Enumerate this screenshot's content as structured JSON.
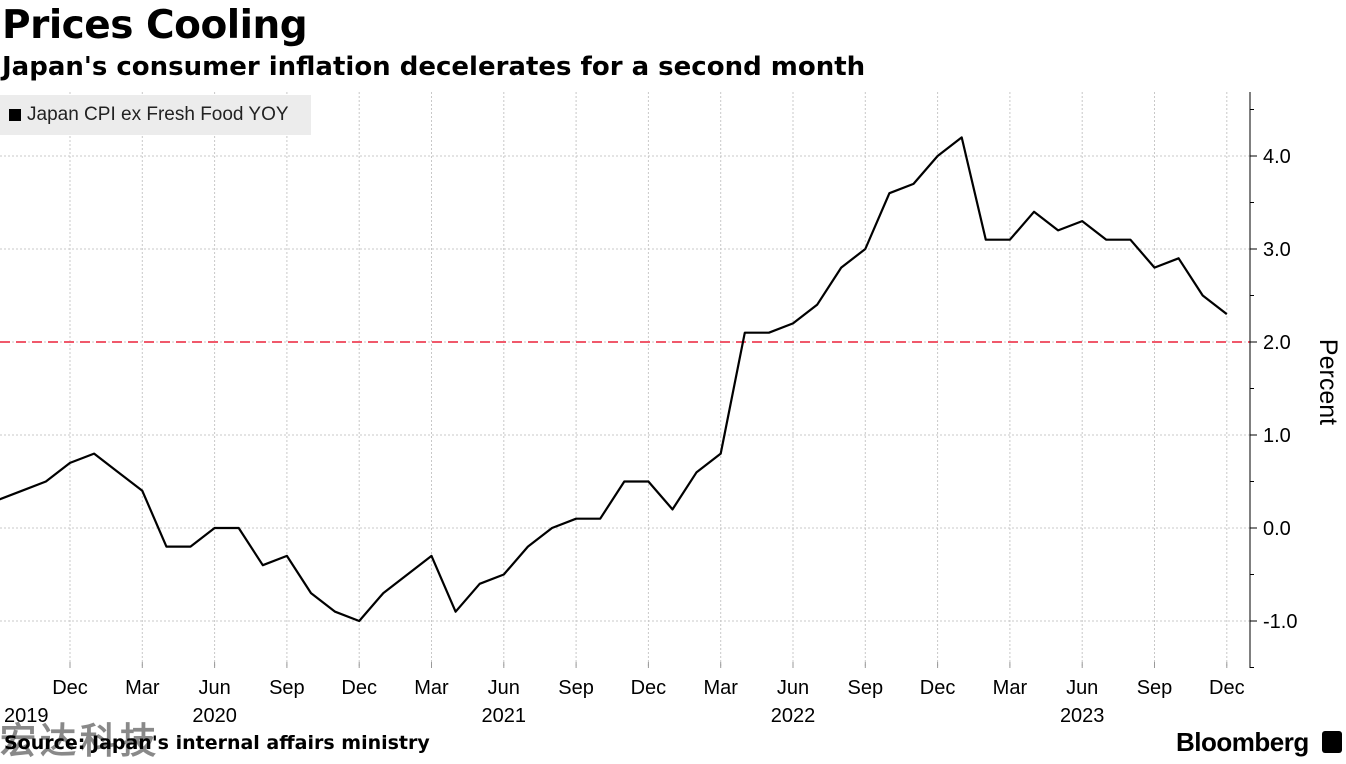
{
  "header": {
    "title": "Prices Cooling",
    "subtitle": "Japan's consumer inflation decelerates for a second month"
  },
  "footer": {
    "source": "Source: Japan's internal affairs ministry",
    "logo": "Bloomberg",
    "watermark": "宏达科技"
  },
  "colors": {
    "line": "#000000",
    "reference": "#f0596b",
    "grid": "#c8c8c8",
    "legend_bg": "#ececec"
  },
  "chart_data": {
    "type": "line",
    "title": "Prices Cooling",
    "subtitle": "Japan's consumer inflation decelerates for a second month",
    "ylabel": "Percent",
    "xlabel": "",
    "ylim": [
      -1.5,
      4.7
    ],
    "yticks": [
      -1.0,
      0.0,
      1.0,
      2.0,
      3.0,
      4.0
    ],
    "ytick_labels": [
      "-1.0",
      "0.0",
      "1.0",
      "2.0",
      "3.0",
      "4.0"
    ],
    "y_axis_position": "right",
    "grid": true,
    "legend": "top-left",
    "reference_line": {
      "y": 2.0,
      "style": "dashed"
    },
    "x_ticks": [
      {
        "date": "2019-12",
        "month": "Dec",
        "year": "2019"
      },
      {
        "date": "2020-03",
        "month": "Mar",
        "year": ""
      },
      {
        "date": "2020-06",
        "month": "Jun",
        "year": "2020"
      },
      {
        "date": "2020-09",
        "month": "Sep",
        "year": ""
      },
      {
        "date": "2020-12",
        "month": "Dec",
        "year": ""
      },
      {
        "date": "2021-03",
        "month": "Mar",
        "year": ""
      },
      {
        "date": "2021-06",
        "month": "Jun",
        "year": "2021"
      },
      {
        "date": "2021-09",
        "month": "Sep",
        "year": ""
      },
      {
        "date": "2021-12",
        "month": "Dec",
        "year": ""
      },
      {
        "date": "2022-03",
        "month": "Mar",
        "year": ""
      },
      {
        "date": "2022-06",
        "month": "Jun",
        "year": "2022"
      },
      {
        "date": "2022-09",
        "month": "Sep",
        "year": ""
      },
      {
        "date": "2022-12",
        "month": "Dec",
        "year": ""
      },
      {
        "date": "2023-03",
        "month": "Mar",
        "year": ""
      },
      {
        "date": "2023-06",
        "month": "Jun",
        "year": "2023"
      },
      {
        "date": "2023-09",
        "month": "Sep",
        "year": ""
      },
      {
        "date": "2023-12",
        "month": "Dec",
        "year": ""
      }
    ],
    "series": [
      {
        "name": "Japan CPI ex Fresh Food YOY",
        "x": [
          "2019-09",
          "2019-10",
          "2019-11",
          "2019-12",
          "2020-01",
          "2020-02",
          "2020-03",
          "2020-04",
          "2020-05",
          "2020-06",
          "2020-07",
          "2020-08",
          "2020-09",
          "2020-10",
          "2020-11",
          "2020-12",
          "2021-01",
          "2021-02",
          "2021-03",
          "2021-04",
          "2021-05",
          "2021-06",
          "2021-07",
          "2021-08",
          "2021-09",
          "2021-10",
          "2021-11",
          "2021-12",
          "2022-01",
          "2022-02",
          "2022-03",
          "2022-04",
          "2022-05",
          "2022-06",
          "2022-07",
          "2022-08",
          "2022-09",
          "2022-10",
          "2022-11",
          "2022-12",
          "2023-01",
          "2023-02",
          "2023-03",
          "2023-04",
          "2023-05",
          "2023-06",
          "2023-07",
          "2023-08",
          "2023-09",
          "2023-10",
          "2023-11",
          "2023-12"
        ],
        "values": [
          0.3,
          0.4,
          0.5,
          0.7,
          0.8,
          0.6,
          0.4,
          -0.2,
          -0.2,
          0.0,
          0.0,
          -0.4,
          -0.3,
          -0.7,
          -0.9,
          -1.0,
          -0.7,
          -0.5,
          -0.3,
          -0.9,
          -0.6,
          -0.5,
          -0.2,
          0.0,
          0.1,
          0.1,
          0.5,
          0.5,
          0.2,
          0.6,
          0.8,
          2.1,
          2.1,
          2.2,
          2.4,
          2.8,
          3.0,
          3.6,
          3.7,
          4.0,
          4.2,
          3.1,
          3.1,
          3.4,
          3.2,
          3.3,
          3.1,
          3.1,
          2.8,
          2.9,
          2.5,
          2.3
        ]
      }
    ]
  }
}
